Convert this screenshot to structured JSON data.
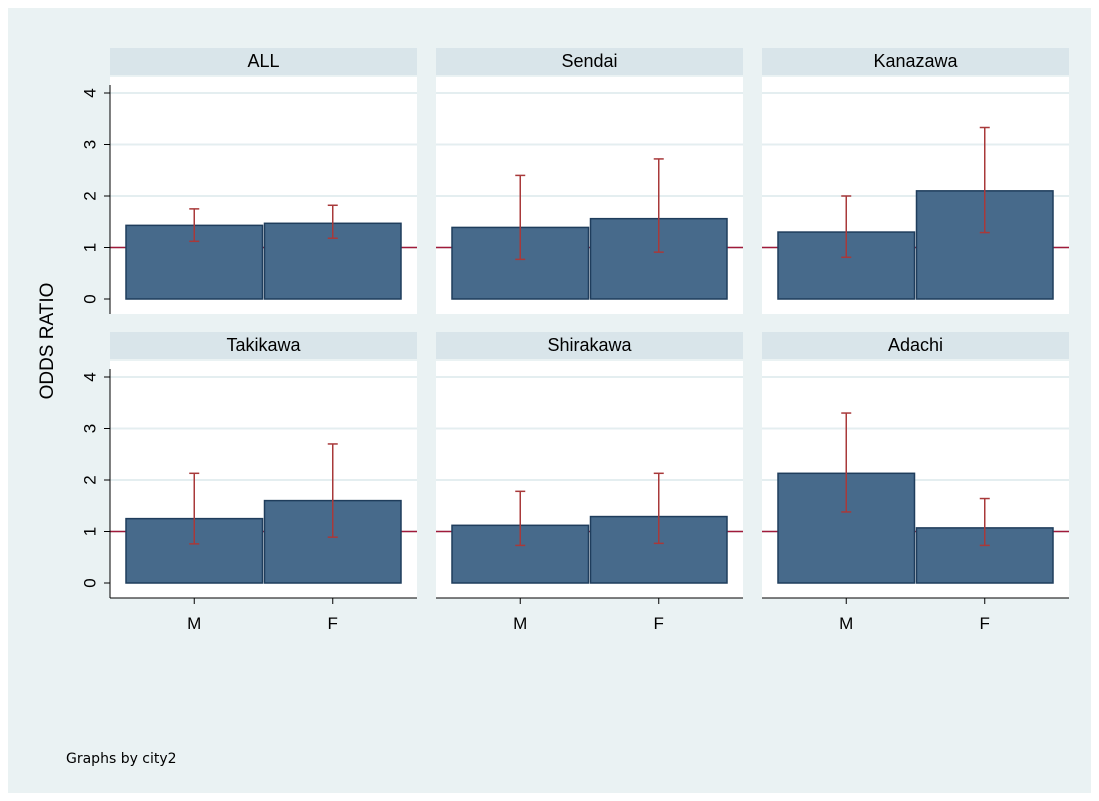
{
  "chart_data": {
    "type": "bar",
    "ylabel": "ODDS RATIO",
    "note": "Graphs by city2",
    "categories": [
      "M",
      "F"
    ],
    "ylim": [
      0,
      4
    ],
    "yticks": [
      "0",
      "1",
      "2",
      "3",
      "4"
    ],
    "reference_line": 1,
    "grid": true,
    "colors": {
      "bar": "#476a8b",
      "bar_edge": "#1f3d5c",
      "error_bar": "#a8393a",
      "reference_line": "#a01a3a",
      "strip": "#d9e5ea",
      "background": "#eaf2f3",
      "grid": "#e4eef0"
    },
    "panels": [
      {
        "title": "ALL",
        "values": [
          1.43,
          1.47
        ],
        "ci_low": [
          1.12,
          1.18
        ],
        "ci_high": [
          1.75,
          1.82
        ]
      },
      {
        "title": "Sendai",
        "values": [
          1.39,
          1.56
        ],
        "ci_low": [
          0.77,
          0.91
        ],
        "ci_high": [
          2.4,
          2.72
        ]
      },
      {
        "title": "Kanazawa",
        "values": [
          1.3,
          2.1
        ],
        "ci_low": [
          0.81,
          1.29
        ],
        "ci_high": [
          2.0,
          3.33
        ]
      },
      {
        "title": "Takikawa",
        "values": [
          1.25,
          1.6
        ],
        "ci_low": [
          0.76,
          0.89
        ],
        "ci_high": [
          2.13,
          2.7
        ]
      },
      {
        "title": "Shirakawa",
        "values": [
          1.12,
          1.29
        ],
        "ci_low": [
          0.73,
          0.77
        ],
        "ci_high": [
          1.78,
          2.13
        ]
      },
      {
        "title": "Adachi",
        "values": [
          2.13,
          1.07
        ],
        "ci_low": [
          1.38,
          0.73
        ],
        "ci_high": [
          3.3,
          1.64
        ]
      }
    ]
  }
}
